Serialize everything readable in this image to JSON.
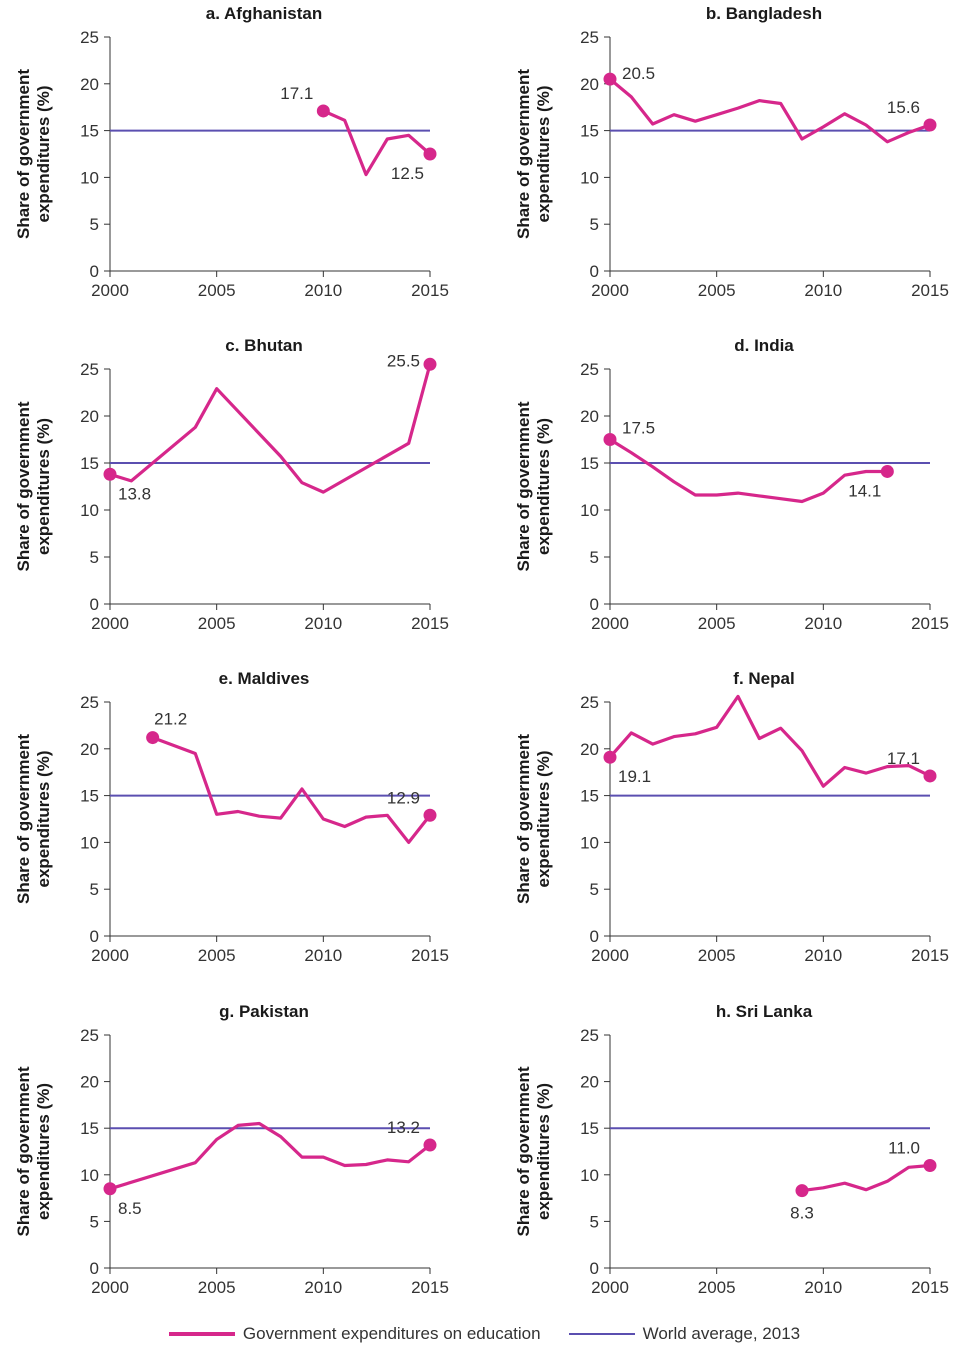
{
  "colors": {
    "education": "#d6278b",
    "world": "#5b4fb0",
    "axis": "#333333"
  },
  "legend": {
    "education": "Government expenditures on education",
    "world": "World average, 2013"
  },
  "chart_data": [
    {
      "type": "line",
      "title": "a. Afghanistan",
      "ylabel": "Share of government expenditures (%)",
      "xlim": [
        2000,
        2015
      ],
      "ylim": [
        0,
        25
      ],
      "xticks": [
        2000,
        2005,
        2010,
        2015
      ],
      "yticks": [
        0,
        5,
        10,
        15,
        20,
        25
      ],
      "reference_line": {
        "name": "World average, 2013",
        "value": 15
      },
      "series": [
        {
          "name": "Government expenditures on education",
          "x": [
            2010,
            2011,
            2012,
            2013,
            2014,
            2015
          ],
          "y": [
            17.1,
            16.1,
            10.3,
            14.1,
            14.5,
            12.5
          ]
        }
      ],
      "annotations": [
        {
          "x": 2010,
          "y": 17.1,
          "text": "17.1",
          "pos": "left-above"
        },
        {
          "x": 2015,
          "y": 12.5,
          "text": "12.5",
          "pos": "left-below"
        }
      ]
    },
    {
      "type": "line",
      "title": "b. Bangladesh",
      "ylabel": "Share of government expenditures (%)",
      "xlim": [
        2000,
        2015
      ],
      "ylim": [
        0,
        25
      ],
      "xticks": [
        2000,
        2005,
        2010,
        2015
      ],
      "yticks": [
        0,
        5,
        10,
        15,
        20,
        25
      ],
      "reference_line": {
        "name": "World average, 2013",
        "value": 15
      },
      "series": [
        {
          "name": "Government expenditures on education",
          "x": [
            2000,
            2001,
            2002,
            2003,
            2004,
            2005,
            2006,
            2007,
            2008,
            2009,
            2010,
            2011,
            2012,
            2013,
            2014,
            2015
          ],
          "y": [
            20.5,
            18.6,
            15.7,
            16.7,
            16.0,
            16.7,
            17.4,
            18.2,
            17.9,
            14.1,
            15.4,
            16.8,
            15.6,
            13.8,
            14.8,
            15.6
          ]
        }
      ],
      "annotations": [
        {
          "x": 2000,
          "y": 20.5,
          "text": "20.5",
          "pos": "right"
        },
        {
          "x": 2015,
          "y": 15.6,
          "text": "15.6",
          "pos": "left-above"
        }
      ]
    },
    {
      "type": "line",
      "title": "c. Bhutan",
      "ylabel": "Share of government expenditures (%)",
      "xlim": [
        2000,
        2015
      ],
      "ylim": [
        0,
        25
      ],
      "xticks": [
        2000,
        2005,
        2010,
        2015
      ],
      "yticks": [
        0,
        5,
        10,
        15,
        20,
        25
      ],
      "reference_line": {
        "name": "World average, 2013",
        "value": 15
      },
      "series": [
        {
          "name": "Government expenditures on education",
          "x": [
            2000,
            2001,
            2004,
            2005,
            2008,
            2009,
            2010,
            2014,
            2015
          ],
          "y": [
            13.8,
            13.1,
            18.8,
            22.9,
            15.7,
            12.9,
            11.9,
            17.1,
            25.5
          ]
        }
      ],
      "annotations": [
        {
          "x": 2000,
          "y": 13.8,
          "text": "13.8",
          "pos": "right-below"
        },
        {
          "x": 2015,
          "y": 25.5,
          "text": "25.5",
          "pos": "left"
        }
      ]
    },
    {
      "type": "line",
      "title": "d. India",
      "ylabel": "Share of government expenditures (%)",
      "xlim": [
        2000,
        2015
      ],
      "ylim": [
        0,
        25
      ],
      "xticks": [
        2000,
        2005,
        2010,
        2015
      ],
      "yticks": [
        0,
        5,
        10,
        15,
        20,
        25
      ],
      "reference_line": {
        "name": "World average, 2013",
        "value": 15
      },
      "series": [
        {
          "name": "Government expenditures on education",
          "x": [
            2000,
            2001,
            2002,
            2003,
            2004,
            2005,
            2006,
            2007,
            2008,
            2009,
            2010,
            2011,
            2012,
            2013
          ],
          "y": [
            17.5,
            16.1,
            14.6,
            13.0,
            11.6,
            11.6,
            11.8,
            11.5,
            11.2,
            10.9,
            11.8,
            13.7,
            14.1,
            14.1
          ]
        }
      ],
      "annotations": [
        {
          "x": 2000,
          "y": 17.5,
          "text": "17.5",
          "pos": "right-above"
        },
        {
          "x": 2013,
          "y": 14.1,
          "text": "14.1",
          "pos": "left-below"
        }
      ]
    },
    {
      "type": "line",
      "title": "e. Maldives",
      "ylabel": "Share of government expenditures (%)",
      "xlim": [
        2000,
        2015
      ],
      "ylim": [
        0,
        25
      ],
      "xticks": [
        2000,
        2005,
        2010,
        2015
      ],
      "yticks": [
        0,
        5,
        10,
        15,
        20,
        25
      ],
      "reference_line": {
        "name": "World average, 2013",
        "value": 15
      },
      "series": [
        {
          "name": "Government expenditures on education",
          "x": [
            2002,
            2004,
            2005,
            2006,
            2007,
            2008,
            2009,
            2010,
            2011,
            2012,
            2013,
            2014,
            2015
          ],
          "y": [
            21.2,
            19.5,
            13.0,
            13.3,
            12.8,
            12.6,
            15.7,
            12.5,
            11.7,
            12.7,
            12.9,
            10.0,
            12.9
          ]
        }
      ],
      "annotations": [
        {
          "x": 2002,
          "y": 21.2,
          "text": "21.2",
          "pos": "above"
        },
        {
          "x": 2015,
          "y": 12.9,
          "text": "12.9",
          "pos": "left-above"
        }
      ]
    },
    {
      "type": "line",
      "title": "f. Nepal",
      "ylabel": "Share of government expenditures (%)",
      "xlim": [
        2000,
        2015
      ],
      "ylim": [
        0,
        25
      ],
      "xticks": [
        2000,
        2005,
        2010,
        2015
      ],
      "yticks": [
        0,
        5,
        10,
        15,
        20,
        25
      ],
      "reference_line": {
        "name": "World average, 2013",
        "value": 15
      },
      "series": [
        {
          "name": "Government expenditures on education",
          "x": [
            2000,
            2001,
            2002,
            2003,
            2004,
            2005,
            2006,
            2007,
            2008,
            2009,
            2010,
            2011,
            2012,
            2013,
            2014,
            2015
          ],
          "y": [
            19.1,
            21.7,
            20.5,
            21.3,
            21.6,
            22.3,
            25.6,
            21.1,
            22.2,
            19.8,
            16.0,
            18.0,
            17.4,
            18.1,
            18.2,
            17.1
          ]
        }
      ],
      "annotations": [
        {
          "x": 2000,
          "y": 19.1,
          "text": "19.1",
          "pos": "right-below"
        },
        {
          "x": 2015,
          "y": 17.1,
          "text": "17.1",
          "pos": "left-above"
        }
      ]
    },
    {
      "type": "line",
      "title": "g. Pakistan",
      "ylabel": "Share of government expenditures (%)",
      "xlim": [
        2000,
        2015
      ],
      "ylim": [
        0,
        25
      ],
      "xticks": [
        2000,
        2005,
        2010,
        2015
      ],
      "yticks": [
        0,
        5,
        10,
        15,
        20,
        25
      ],
      "reference_line": {
        "name": "World average, 2013",
        "value": 15
      },
      "series": [
        {
          "name": "Government expenditures on education",
          "x": [
            2000,
            2004,
            2005,
            2006,
            2007,
            2008,
            2009,
            2010,
            2011,
            2012,
            2013,
            2014,
            2015
          ],
          "y": [
            8.5,
            11.3,
            13.8,
            15.3,
            15.5,
            14.1,
            11.9,
            11.9,
            11.0,
            11.1,
            11.6,
            11.4,
            13.2
          ]
        }
      ],
      "annotations": [
        {
          "x": 2000,
          "y": 8.5,
          "text": "8.5",
          "pos": "right-below"
        },
        {
          "x": 2015,
          "y": 13.2,
          "text": "13.2",
          "pos": "left-above"
        }
      ]
    },
    {
      "type": "line",
      "title": "h. Sri Lanka",
      "ylabel": "Share of government expenditures (%)",
      "xlim": [
        2000,
        2015
      ],
      "ylim": [
        0,
        25
      ],
      "xticks": [
        2000,
        2005,
        2010,
        2015
      ],
      "yticks": [
        0,
        5,
        10,
        15,
        20,
        25
      ],
      "reference_line": {
        "name": "World average, 2013",
        "value": 15
      },
      "series": [
        {
          "name": "Government expenditures on education",
          "x": [
            2009,
            2010,
            2011,
            2012,
            2013,
            2014,
            2015
          ],
          "y": [
            8.3,
            8.6,
            9.1,
            8.4,
            9.3,
            10.8,
            11.0
          ]
        }
      ],
      "annotations": [
        {
          "x": 2009,
          "y": 8.3,
          "text": "8.3",
          "pos": "below"
        },
        {
          "x": 2015,
          "y": 11.0,
          "text": "11.0",
          "pos": "left-above"
        }
      ]
    }
  ]
}
